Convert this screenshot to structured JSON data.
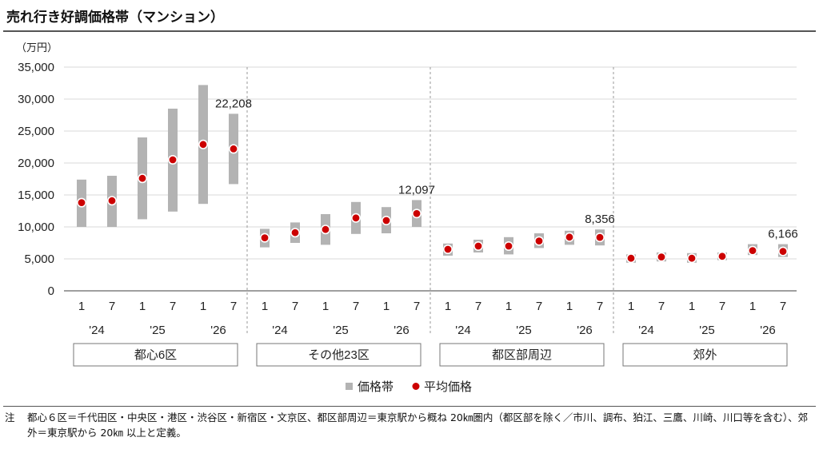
{
  "title": "売れ行き好調価格帯（マンション）",
  "note": {
    "prefix": "注",
    "text": "都心６区＝千代田区・中央区・港区・渋谷区・新宿区・文京区、都区部周辺＝東京駅から概ね 20㎞圏内（都区部を除く／市川、調布、狛江、三鷹、川崎、川口等を含む）、郊外＝東京駅から 20㎞ 以上と定義。"
  },
  "colors": {
    "range_bar": "#b3b3b3",
    "avg_point": "#cc0000",
    "avg_point_outline": "#ffffff",
    "axis": "#666666",
    "grid": "#d9d9d9",
    "group_divider": "#9a9a9a"
  },
  "chart_data": {
    "type": "range-bar-with-points",
    "y_unit": "（万円）",
    "ylim": [
      0,
      35000
    ],
    "y_ticks": [
      0,
      5000,
      10000,
      15000,
      20000,
      25000,
      30000,
      35000
    ],
    "y_tick_labels": [
      "0",
      "5,000",
      "10,000",
      "15,000",
      "20,000",
      "25,000",
      "30,000",
      "35,000"
    ],
    "grid": true,
    "legend_position": "bottom-center",
    "legend": [
      {
        "key": "range",
        "label": "価格帯",
        "marker": "square"
      },
      {
        "key": "avg",
        "label": "平均価格",
        "marker": "circle"
      }
    ],
    "groups": [
      {
        "name": "都心6区",
        "points": [
          {
            "month": "1",
            "year": "'24",
            "low": 10000,
            "high": 17400,
            "avg": 13800
          },
          {
            "month": "7",
            "year": "'24",
            "low": 10000,
            "high": 18000,
            "avg": 14100
          },
          {
            "month": "1",
            "year": "'25",
            "low": 11200,
            "high": 24000,
            "avg": 17600
          },
          {
            "month": "7",
            "year": "'25",
            "low": 12400,
            "high": 28500,
            "avg": 20500
          },
          {
            "month": "1",
            "year": "'26",
            "low": 13600,
            "high": 32200,
            "avg": 22900
          },
          {
            "month": "7",
            "year": "'26",
            "low": 16700,
            "high": 27700,
            "avg": 22208,
            "label": "22,208"
          }
        ]
      },
      {
        "name": "その他23区",
        "points": [
          {
            "month": "1",
            "year": "'24",
            "low": 6800,
            "high": 9700,
            "avg": 8300
          },
          {
            "month": "7",
            "year": "'24",
            "low": 7500,
            "high": 10700,
            "avg": 9100
          },
          {
            "month": "1",
            "year": "'25",
            "low": 7200,
            "high": 12000,
            "avg": 9600
          },
          {
            "month": "7",
            "year": "'25",
            "low": 8900,
            "high": 13900,
            "avg": 11400
          },
          {
            "month": "1",
            "year": "'26",
            "low": 9000,
            "high": 13100,
            "avg": 11000
          },
          {
            "month": "7",
            "year": "'26",
            "low": 10000,
            "high": 14200,
            "avg": 12097,
            "label": "12,097"
          }
        ]
      },
      {
        "name": "都区部周辺",
        "points": [
          {
            "month": "1",
            "year": "'24",
            "low": 5500,
            "high": 7400,
            "avg": 6500
          },
          {
            "month": "7",
            "year": "'24",
            "low": 6000,
            "high": 8000,
            "avg": 7000
          },
          {
            "month": "1",
            "year": "'25",
            "low": 5700,
            "high": 8400,
            "avg": 7000
          },
          {
            "month": "7",
            "year": "'25",
            "low": 6700,
            "high": 9000,
            "avg": 7800
          },
          {
            "month": "1",
            "year": "'26",
            "low": 7200,
            "high": 9400,
            "avg": 8400
          },
          {
            "month": "7",
            "year": "'26",
            "low": 7100,
            "high": 9600,
            "avg": 8356,
            "label": "8,356"
          }
        ]
      },
      {
        "name": "郊外",
        "points": [
          {
            "month": "1",
            "year": "'24",
            "low": 4400,
            "high": 5700,
            "avg": 5100
          },
          {
            "month": "7",
            "year": "'24",
            "low": 4600,
            "high": 6000,
            "avg": 5300
          },
          {
            "month": "1",
            "year": "'25",
            "low": 4400,
            "high": 5900,
            "avg": 5100
          },
          {
            "month": "7",
            "year": "'25",
            "low": 4800,
            "high": 6000,
            "avg": 5400
          },
          {
            "month": "1",
            "year": "'26",
            "low": 5600,
            "high": 7300,
            "avg": 6300
          },
          {
            "month": "7",
            "year": "'26",
            "low": 5300,
            "high": 7300,
            "avg": 6166,
            "label": "6,166"
          }
        ]
      }
    ]
  }
}
